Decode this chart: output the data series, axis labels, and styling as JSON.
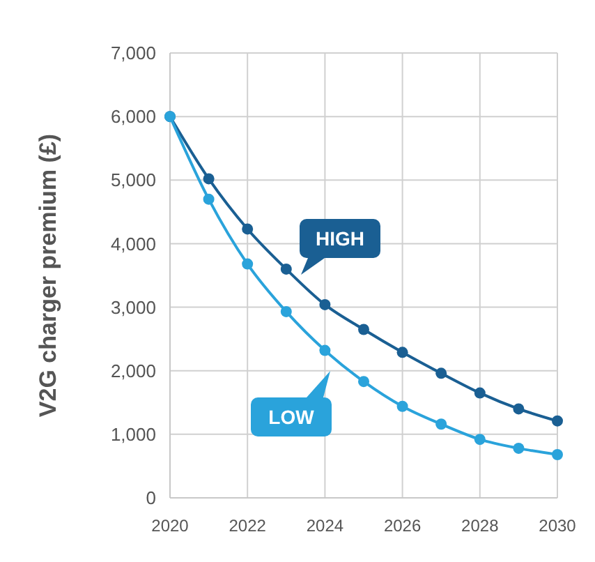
{
  "chart_data": {
    "type": "line",
    "ylabel": "V2G charger premium (£)",
    "x": [
      2020,
      2021,
      2022,
      2023,
      2024,
      2025,
      2026,
      2027,
      2028,
      2029,
      2030
    ],
    "series": [
      {
        "name": "HIGH",
        "color": "#1a5f93",
        "values": [
          6000,
          5020,
          4230,
          3600,
          3040,
          2650,
          2290,
          1960,
          1650,
          1400,
          1210
        ]
      },
      {
        "name": "LOW",
        "color": "#2aa3db",
        "values": [
          6000,
          4700,
          3680,
          2930,
          2320,
          1830,
          1440,
          1160,
          920,
          780,
          680
        ]
      }
    ],
    "xlim": [
      2020,
      2030
    ],
    "xticks": [
      2020,
      2022,
      2024,
      2026,
      2028,
      2030
    ],
    "ylim": [
      0,
      7000
    ],
    "yticks": [
      {
        "value": 0,
        "label": "0"
      },
      {
        "value": 1000,
        "label": "1,000"
      },
      {
        "value": 2000,
        "label": "2,000"
      },
      {
        "value": 3000,
        "label": "3,000"
      },
      {
        "value": 4000,
        "label": "4,000"
      },
      {
        "value": 5000,
        "label": "5,000"
      },
      {
        "value": 6000,
        "label": "6,000"
      },
      {
        "value": 7000,
        "label": "7,000"
      }
    ],
    "grid": true,
    "marker": "circle",
    "line_style": "solid"
  }
}
